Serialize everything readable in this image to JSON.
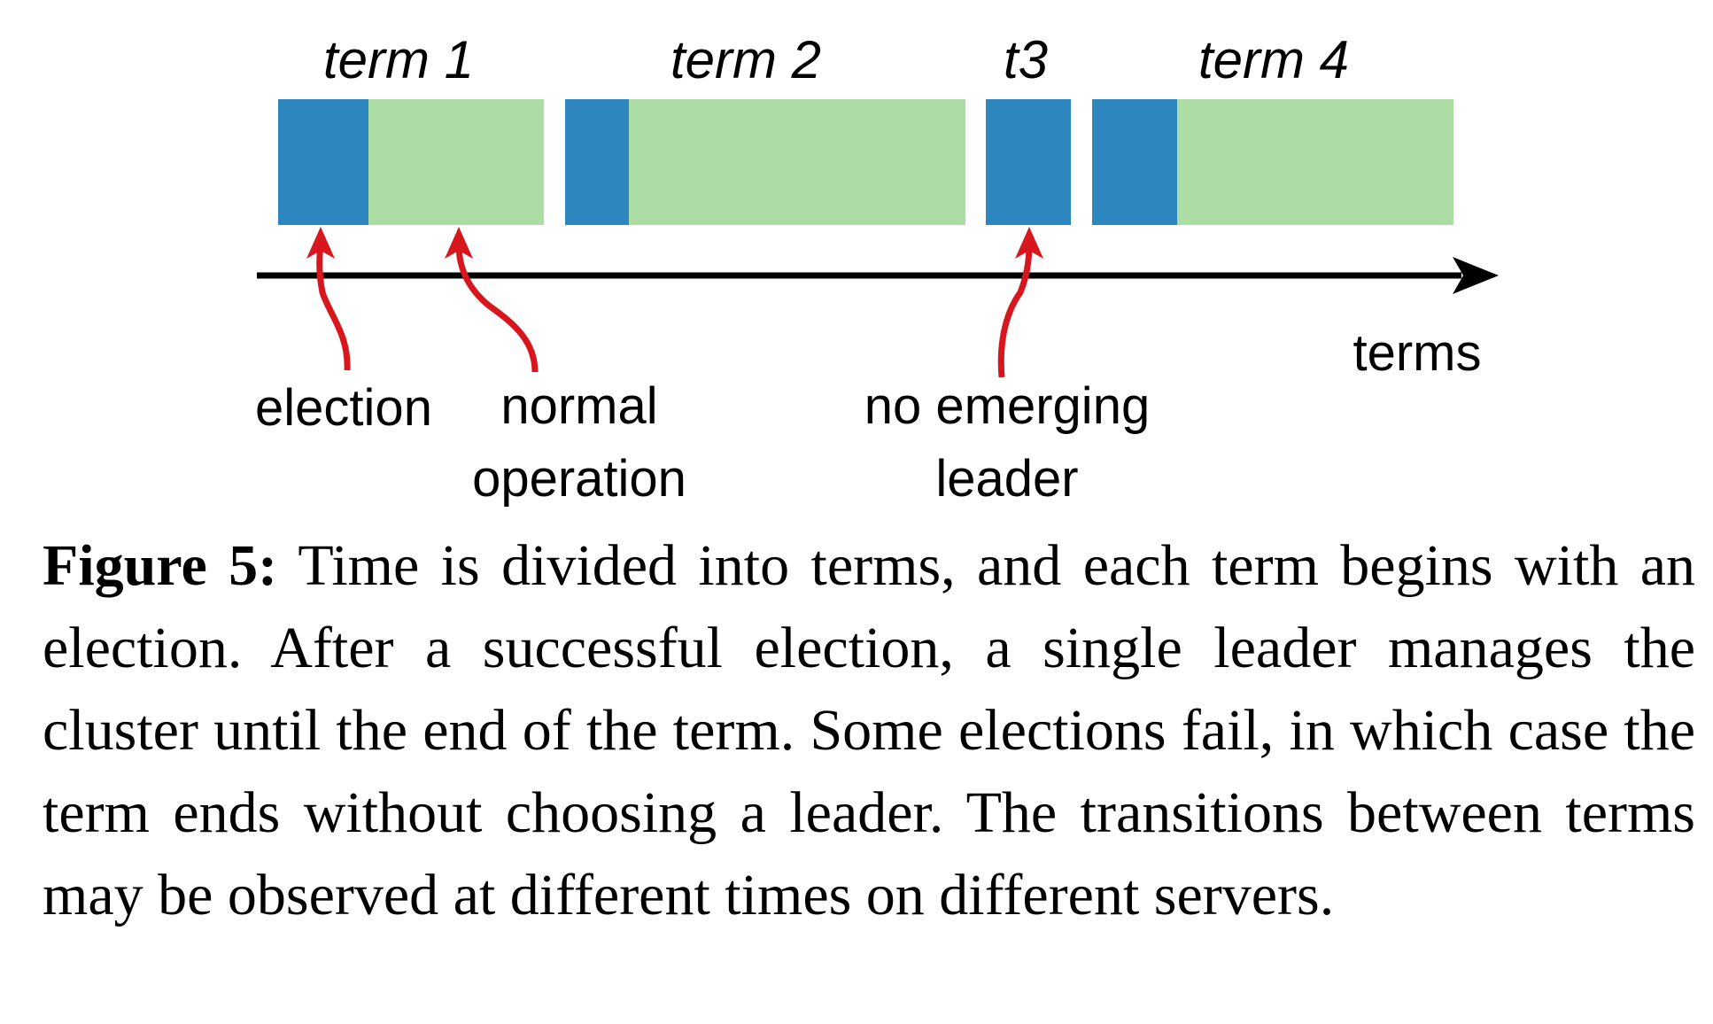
{
  "diagram": {
    "terms": [
      {
        "label": "term 1",
        "segments": [
          "election",
          "normal operation"
        ]
      },
      {
        "label": "term 2",
        "segments": [
          "election",
          "normal operation"
        ]
      },
      {
        "label": "t3",
        "segments": [
          "election"
        ]
      },
      {
        "label": "term 4",
        "segments": [
          "election",
          "normal operation"
        ]
      }
    ],
    "axis_label": "terms",
    "annotations": {
      "election": "election",
      "normal_operation": [
        "normal",
        "operation"
      ],
      "no_leader": [
        "no emerging",
        "leader"
      ]
    },
    "colors": {
      "election": "#2e86bf",
      "normal": "#abdda5",
      "axis": "#000000",
      "arrow": "#d8161d"
    }
  },
  "caption": {
    "label": "Figure 5:",
    "text": "Time is divided into terms, and each term begins with an election. After a successful election, a single leader manages the cluster until the end of the term. Some elections fail, in which case the term ends without choosing a leader. The transitions between terms may be observed at different times on different servers."
  }
}
